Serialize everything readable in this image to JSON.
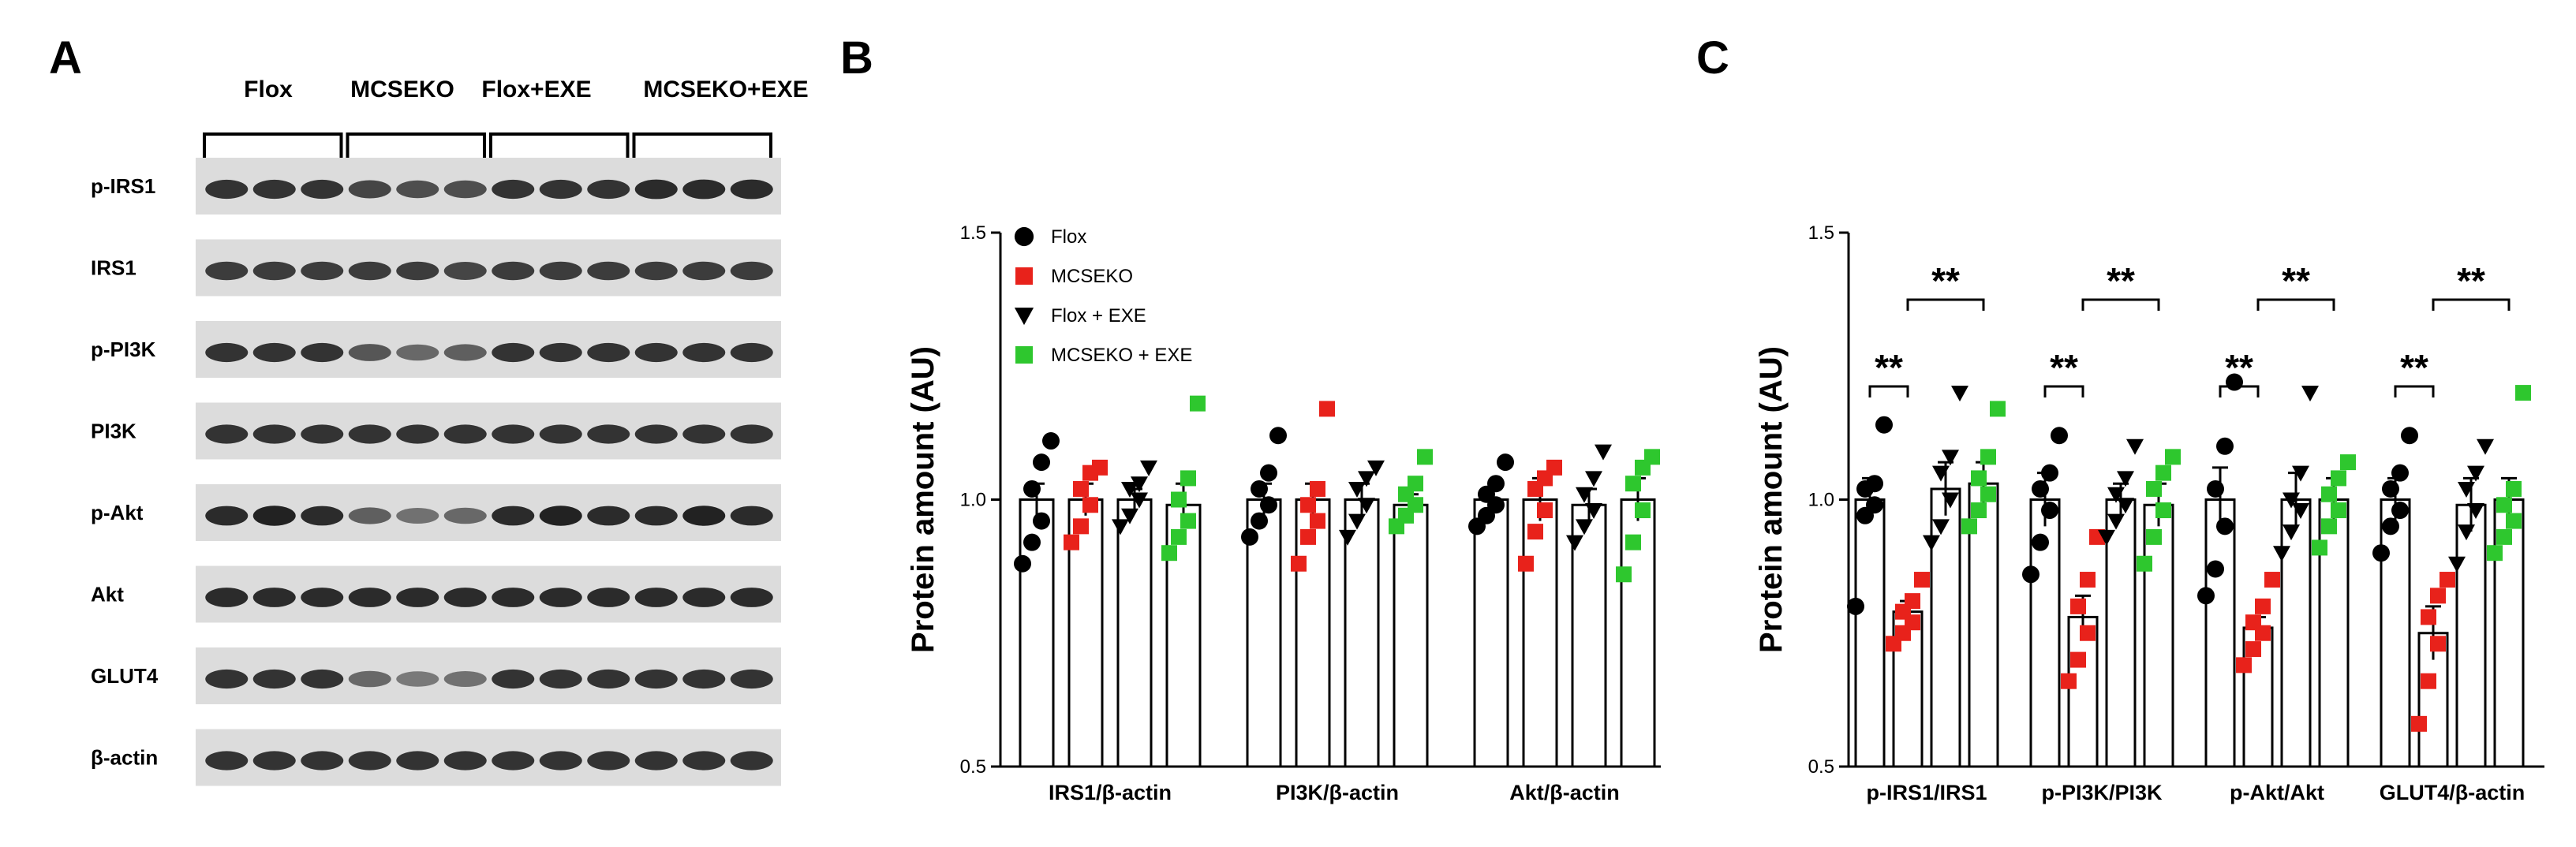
{
  "panels": {
    "a": "A",
    "b": "B",
    "c": "C"
  },
  "colors": {
    "flox": "#000000",
    "mcseko": "#e8221b",
    "flox_exe": "#000000",
    "mcseko_exe": "#2ec72e"
  },
  "blot": {
    "groups": [
      "Flox",
      "MCSEKO",
      "Flox+EXE",
      "MCSEKO+EXE"
    ],
    "rows": [
      "p-IRS1",
      "IRS1",
      "p-PI3K",
      "PI3K",
      "p-Akt",
      "Akt",
      "GLUT4",
      "β-actin"
    ],
    "band_intensity": [
      [
        0.85,
        0.85,
        0.85,
        0.75,
        0.7,
        0.7,
        0.85,
        0.85,
        0.85,
        0.9,
        0.9,
        0.9
      ],
      [
        0.8,
        0.8,
        0.8,
        0.8,
        0.8,
        0.75,
        0.8,
        0.8,
        0.8,
        0.8,
        0.8,
        0.8
      ],
      [
        0.85,
        0.85,
        0.85,
        0.65,
        0.55,
        0.6,
        0.85,
        0.85,
        0.85,
        0.85,
        0.85,
        0.85
      ],
      [
        0.85,
        0.85,
        0.85,
        0.85,
        0.85,
        0.85,
        0.85,
        0.85,
        0.85,
        0.85,
        0.85,
        0.85
      ],
      [
        0.9,
        0.95,
        0.9,
        0.6,
        0.5,
        0.55,
        0.9,
        0.95,
        0.9,
        0.9,
        0.95,
        0.9
      ],
      [
        0.9,
        0.9,
        0.9,
        0.9,
        0.9,
        0.9,
        0.9,
        0.9,
        0.9,
        0.9,
        0.9,
        0.9
      ],
      [
        0.85,
        0.85,
        0.85,
        0.55,
        0.45,
        0.5,
        0.85,
        0.85,
        0.85,
        0.85,
        0.85,
        0.85
      ],
      [
        0.85,
        0.85,
        0.85,
        0.85,
        0.85,
        0.85,
        0.85,
        0.85,
        0.85,
        0.85,
        0.85,
        0.85
      ]
    ]
  },
  "chart_data": [
    {
      "type": "bar",
      "panel": "B",
      "ylabel": "Protein amount (AU)",
      "ylim": [
        0.5,
        1.5
      ],
      "yticks": [
        "0.5",
        "1.0",
        "1.5"
      ],
      "categories": [
        "IRS1/β-actin",
        "PI3K/β-actin",
        "Akt/β-actin"
      ],
      "legend": [
        "Flox",
        "MCSEKO",
        "Flox + EXE",
        "MCSEKO + EXE"
      ],
      "series": [
        {
          "name": "Flox",
          "values": [
            1.0,
            1.0,
            1.0
          ],
          "sem": [
            0.03,
            0.03,
            0.02
          ],
          "points": [
            [
              0.88,
              0.92,
              0.96,
              1.02,
              1.07,
              1.11
            ],
            [
              0.93,
              0.96,
              0.99,
              1.02,
              1.05,
              1.12
            ],
            [
              0.95,
              0.97,
              0.99,
              1.01,
              1.03,
              1.07
            ]
          ]
        },
        {
          "name": "MCSEKO",
          "values": [
            1.0,
            1.0,
            1.0
          ],
          "sem": [
            0.03,
            0.03,
            0.04
          ],
          "points": [
            [
              0.92,
              0.95,
              0.99,
              1.02,
              1.05,
              1.06
            ],
            [
              0.88,
              0.93,
              0.96,
              0.99,
              1.02,
              1.17
            ],
            [
              0.88,
              0.94,
              0.98,
              1.02,
              1.04,
              1.06
            ]
          ]
        },
        {
          "name": "Flox + EXE",
          "values": [
            1.0,
            1.0,
            0.99
          ],
          "sem": [
            0.02,
            0.03,
            0.03
          ],
          "points": [
            [
              0.95,
              0.97,
              1.0,
              1.02,
              1.03,
              1.06
            ],
            [
              0.93,
              0.96,
              0.99,
              1.02,
              1.04,
              1.06
            ],
            [
              0.92,
              0.95,
              0.98,
              1.01,
              1.04,
              1.09
            ]
          ]
        },
        {
          "name": "MCSEKO + EXE",
          "values": [
            0.99,
            0.99,
            1.0
          ],
          "sem": [
            0.04,
            0.02,
            0.04
          ],
          "points": [
            [
              0.9,
              0.93,
              0.96,
              1.0,
              1.04,
              1.18
            ],
            [
              0.95,
              0.97,
              0.99,
              1.01,
              1.03,
              1.08
            ],
            [
              0.86,
              0.92,
              0.98,
              1.03,
              1.06,
              1.08
            ]
          ]
        }
      ]
    },
    {
      "type": "bar",
      "panel": "C",
      "ylabel": "Protein amount (AU)",
      "ylim": [
        0.5,
        1.5
      ],
      "yticks": [
        "0.5",
        "1.0",
        "1.5"
      ],
      "categories": [
        "p-IRS1/IRS1",
        "p-PI3K/PI3K",
        "p-Akt/Akt",
        "GLUT4/β-actin"
      ],
      "series": [
        {
          "name": "Flox",
          "values": [
            1.0,
            1.0,
            1.0,
            1.0
          ],
          "sem": [
            0.04,
            0.05,
            0.06,
            0.04
          ],
          "points": [
            [
              0.8,
              0.97,
              0.99,
              1.02,
              1.03,
              1.14
            ],
            [
              0.86,
              0.92,
              0.98,
              1.02,
              1.05,
              1.12
            ],
            [
              0.82,
              0.87,
              0.95,
              1.02,
              1.1,
              1.22
            ],
            [
              0.9,
              0.95,
              0.98,
              1.02,
              1.05,
              1.12
            ]
          ]
        },
        {
          "name": "MCSEKO",
          "values": [
            0.79,
            0.78,
            0.76,
            0.75
          ],
          "sem": [
            0.02,
            0.04,
            0.02,
            0.05
          ],
          "points": [
            [
              0.73,
              0.75,
              0.77,
              0.79,
              0.81,
              0.85
            ],
            [
              0.66,
              0.7,
              0.75,
              0.8,
              0.85,
              0.93
            ],
            [
              0.69,
              0.72,
              0.75,
              0.77,
              0.8,
              0.85
            ],
            [
              0.58,
              0.66,
              0.73,
              0.78,
              0.82,
              0.85
            ]
          ]
        },
        {
          "name": "Flox + EXE",
          "values": [
            1.02,
            1.0,
            1.0,
            0.99
          ],
          "sem": [
            0.05,
            0.03,
            0.05,
            0.05
          ],
          "points": [
            [
              0.92,
              0.95,
              1.0,
              1.05,
              1.08,
              1.2
            ],
            [
              0.93,
              0.96,
              0.99,
              1.01,
              1.04,
              1.1
            ],
            [
              0.9,
              0.94,
              0.98,
              1.0,
              1.05,
              1.2
            ],
            [
              0.88,
              0.94,
              0.98,
              1.02,
              1.05,
              1.1
            ]
          ]
        },
        {
          "name": "MCSEKO + EXE",
          "values": [
            1.03,
            0.99,
            1.0,
            1.0
          ],
          "sem": [
            0.04,
            0.04,
            0.04,
            0.04
          ],
          "points": [
            [
              0.95,
              0.98,
              1.01,
              1.04,
              1.08,
              1.17
            ],
            [
              0.88,
              0.93,
              0.98,
              1.02,
              1.05,
              1.08
            ],
            [
              0.91,
              0.95,
              0.98,
              1.01,
              1.04,
              1.07
            ],
            [
              0.9,
              0.93,
              0.96,
              0.99,
              1.02,
              1.2
            ]
          ]
        }
      ],
      "significance": [
        {
          "label": "**",
          "category": "p-IRS1/IRS1",
          "from": "Flox",
          "to": "MCSEKO"
        },
        {
          "label": "**",
          "category": "p-IRS1/IRS1",
          "from": "MCSEKO",
          "to": "MCSEKO + EXE"
        },
        {
          "label": "**",
          "category": "p-PI3K/PI3K",
          "from": "Flox",
          "to": "MCSEKO"
        },
        {
          "label": "**",
          "category": "p-PI3K/PI3K",
          "from": "MCSEKO",
          "to": "MCSEKO + EXE"
        },
        {
          "label": "**",
          "category": "p-Akt/Akt",
          "from": "Flox",
          "to": "MCSEKO"
        },
        {
          "label": "**",
          "category": "p-Akt/Akt",
          "from": "MCSEKO",
          "to": "MCSEKO + EXE"
        },
        {
          "label": "**",
          "category": "GLUT4/β-actin",
          "from": "Flox",
          "to": "MCSEKO"
        },
        {
          "label": "**",
          "category": "GLUT4/β-actin",
          "from": "MCSEKO",
          "to": "MCSEKO + EXE"
        }
      ]
    }
  ]
}
